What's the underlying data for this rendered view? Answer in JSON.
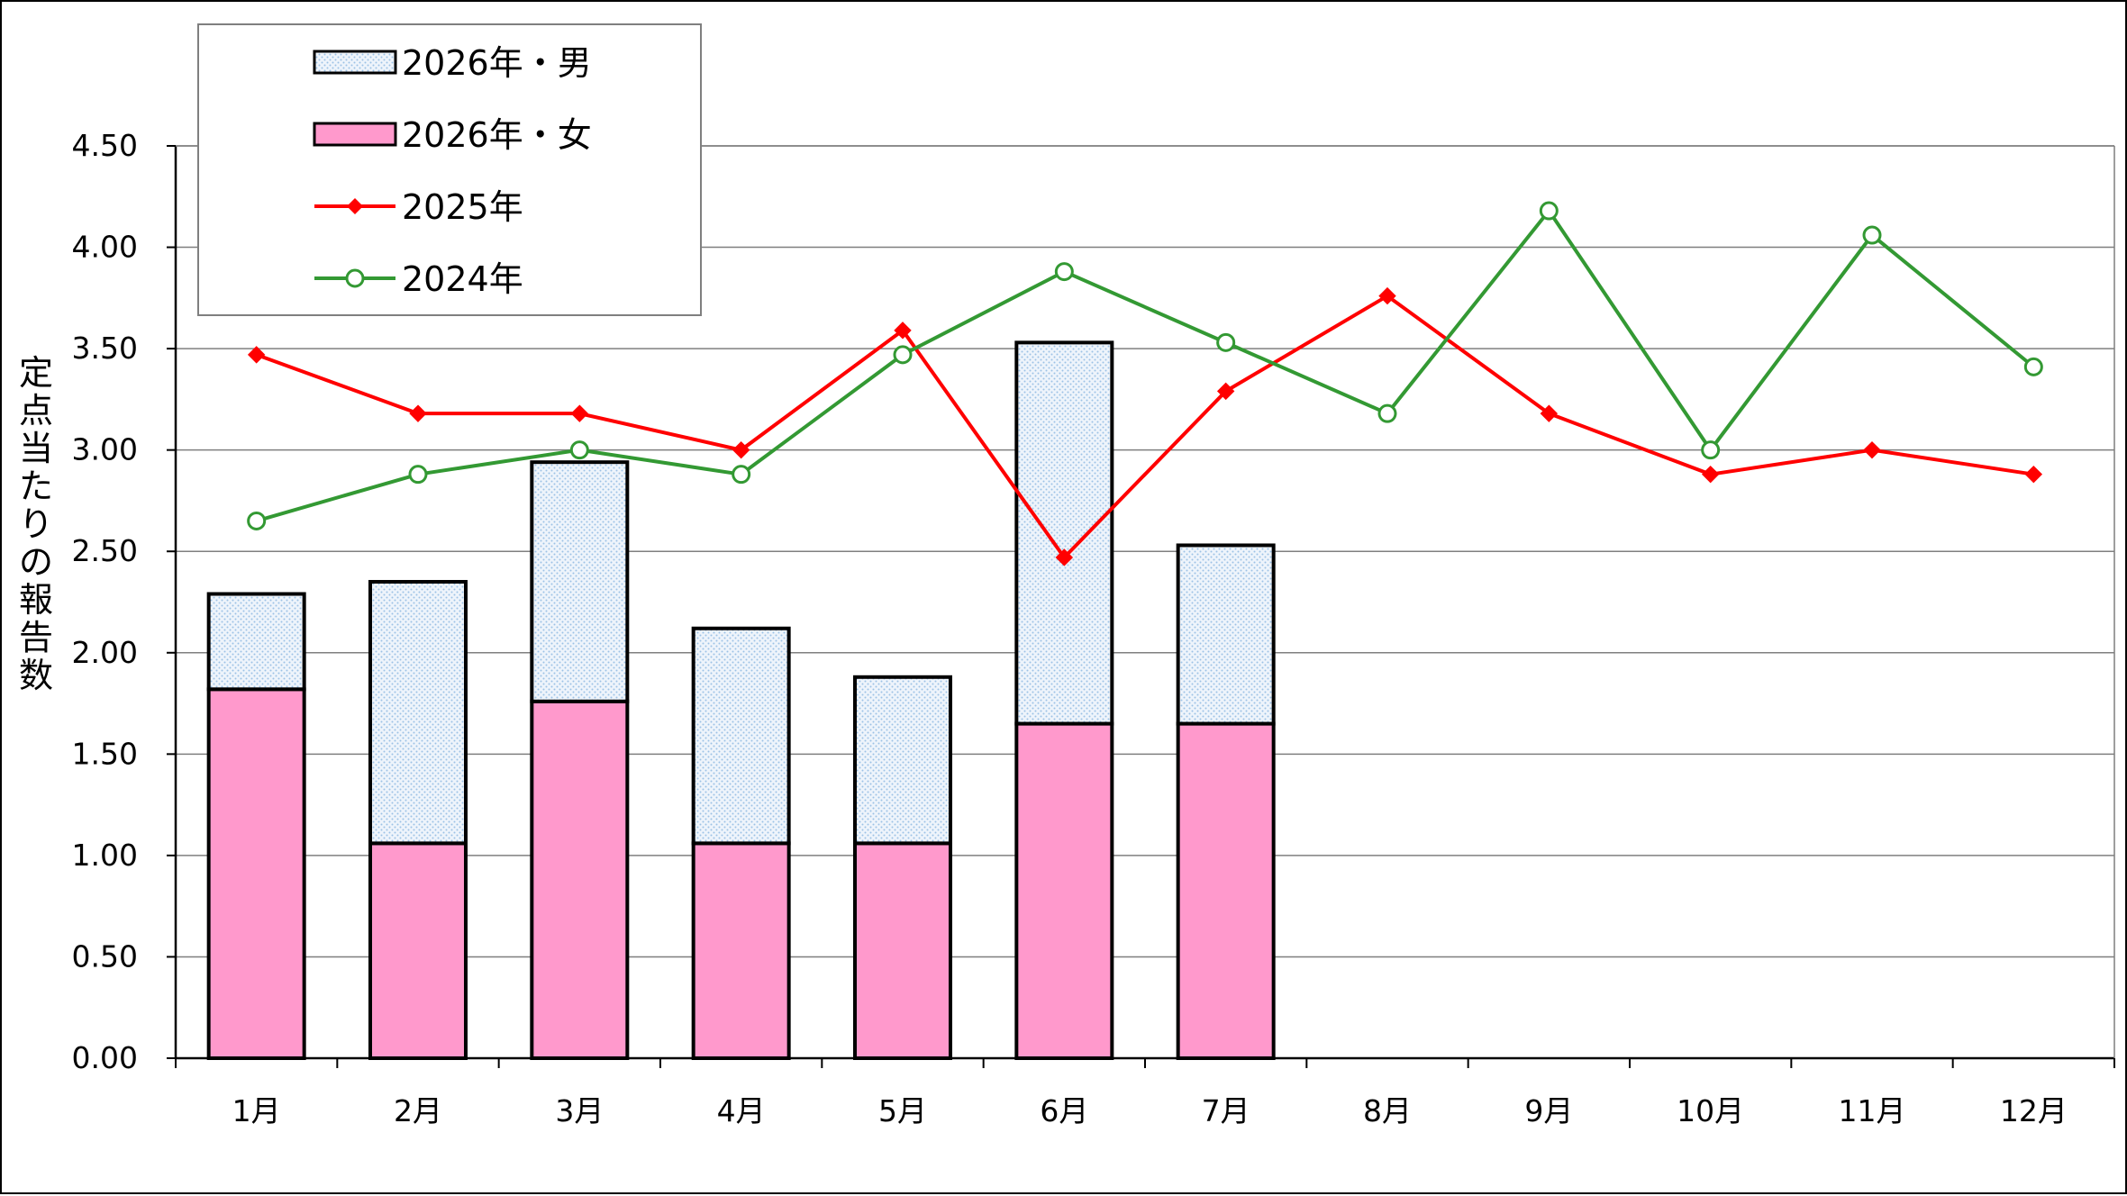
{
  "chart_data": {
    "type": "bar",
    "title": "",
    "ylabel": "定点当たりの報告数",
    "xlabel": "",
    "ylim": [
      0,
      4.5
    ],
    "ytick_step": 0.5,
    "yticks": [
      "0.00",
      "0.50",
      "1.00",
      "1.50",
      "2.00",
      "2.50",
      "3.00",
      "3.50",
      "4.00",
      "4.50"
    ],
    "categories": [
      "1月",
      "2月",
      "3月",
      "4月",
      "5月",
      "6月",
      "7月",
      "8月",
      "9月",
      "10月",
      "11月",
      "12月"
    ],
    "grid": true,
    "legend_position": "top-left",
    "series": [
      {
        "name": "2026年・女",
        "kind": "stacked-bar",
        "color": "#ff99cc",
        "values": [
          1.82,
          1.06,
          1.76,
          1.06,
          1.06,
          1.65,
          1.65,
          null,
          null,
          null,
          null,
          null
        ]
      },
      {
        "name": "2026年・男",
        "kind": "stacked-bar",
        "color": "#dde9f5",
        "pattern": "dotted",
        "values": [
          0.47,
          1.29,
          1.18,
          1.06,
          0.82,
          1.88,
          0.88,
          null,
          null,
          null,
          null,
          null
        ]
      },
      {
        "name": "2025年",
        "kind": "line",
        "color": "#ff0000",
        "marker": "diamond",
        "values": [
          3.47,
          3.18,
          3.18,
          3.0,
          3.59,
          2.47,
          3.29,
          3.76,
          3.18,
          2.88,
          3.0,
          2.88
        ]
      },
      {
        "name": "2024年",
        "kind": "line",
        "color": "#339933",
        "marker": "open-circle",
        "values": [
          2.65,
          2.88,
          3.0,
          2.88,
          3.47,
          3.88,
          3.53,
          3.18,
          4.18,
          3.0,
          4.06,
          3.41
        ]
      }
    ],
    "legend_order": [
      "2026年・男",
      "2026年・女",
      "2025年",
      "2024年"
    ]
  }
}
